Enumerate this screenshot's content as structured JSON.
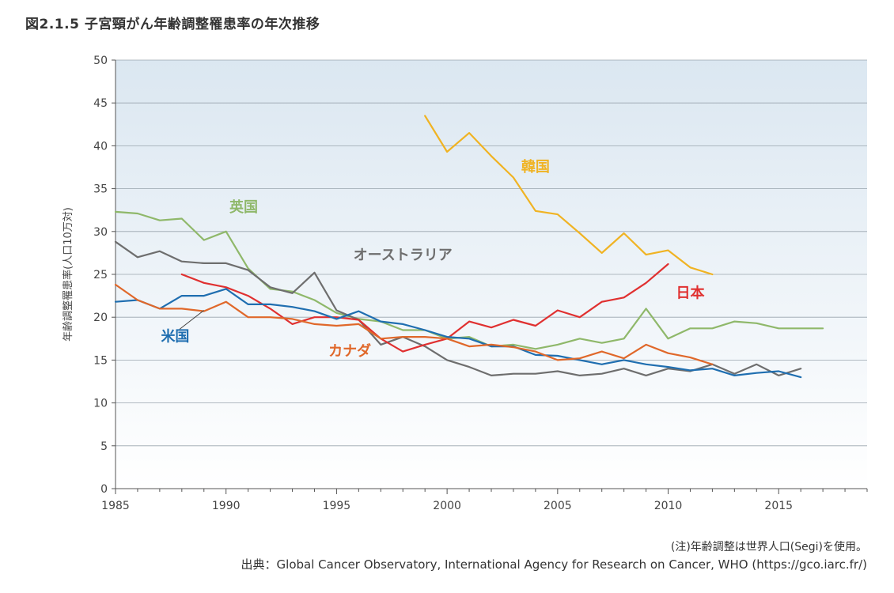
{
  "title": "図2.1.5  子宮頸がん年齢調整罹患率の年次推移",
  "note": "(注)年齢調整は世界人口(Segi)を使用。",
  "source": "出典：Global Cancer Observatory, International Agency for Research on Cancer, WHO (https://gco.iarc.fr/)",
  "chart_data": {
    "type": "line",
    "title": "図2.1.5  子宮頸がん年齢調整罹患率の年次推移",
    "xlabel": "",
    "ylabel": "年齢調整罹患率(人口10万対)",
    "xlim": [
      1985,
      2019
    ],
    "ylim": [
      0,
      50
    ],
    "xticks": [
      1985,
      1990,
      1995,
      2000,
      2005,
      2010,
      2015
    ],
    "yticks": [
      0,
      5,
      10,
      15,
      20,
      25,
      30,
      35,
      40,
      45,
      50
    ],
    "grid": "horizontal",
    "background": "gradient light blue to white",
    "series": [
      {
        "name": "韓国",
        "color": "#f0b323",
        "x": [
          1999,
          2000,
          2001,
          2002,
          2003,
          2004,
          2005,
          2006,
          2007,
          2008,
          2009,
          2010,
          2011,
          2012
        ],
        "y": [
          43.5,
          39.3,
          41.5,
          38.8,
          36.3,
          32.4,
          32.0,
          29.8,
          27.5,
          29.8,
          27.3,
          27.8,
          25.8,
          25.0
        ]
      },
      {
        "name": "英国",
        "color": "#8fb86a",
        "x": [
          1985,
          1986,
          1987,
          1988,
          1989,
          1990,
          1991,
          1992,
          1993,
          1994,
          1995,
          1996,
          1997,
          1998,
          1999,
          2000,
          2001,
          2002,
          2003,
          2004,
          2005,
          2006,
          2007,
          2008,
          2009,
          2010,
          2011,
          2012,
          2013,
          2014,
          2015,
          2016,
          2017
        ],
        "y": [
          32.3,
          32.1,
          31.3,
          31.5,
          29.0,
          30.0,
          25.7,
          23.3,
          23.0,
          22.0,
          20.5,
          19.8,
          19.5,
          18.5,
          18.5,
          17.5,
          17.7,
          16.6,
          16.8,
          16.3,
          16.8,
          17.5,
          17.0,
          17.5,
          21.0,
          17.5,
          18.7,
          18.7,
          19.5,
          19.3,
          18.7,
          18.7,
          18.7
        ]
      },
      {
        "name": "オーストラリア",
        "color": "#6e6e6e",
        "x": [
          1985,
          1986,
          1987,
          1988,
          1989,
          1990,
          1991,
          1992,
          1993,
          1994,
          1995,
          1996,
          1997,
          1998,
          1999,
          2000,
          2001,
          2002,
          2003,
          2004,
          2005,
          2006,
          2007,
          2008,
          2009,
          2010,
          2011,
          2012,
          2013,
          2014,
          2015,
          2016
        ],
        "y": [
          28.8,
          27.0,
          27.7,
          26.5,
          26.3,
          26.3,
          25.5,
          23.5,
          22.8,
          25.2,
          20.8,
          19.7,
          16.8,
          17.7,
          16.6,
          15.0,
          14.2,
          13.2,
          13.4,
          13.4,
          13.7,
          13.2,
          13.4,
          14.0,
          13.2,
          14.0,
          13.7,
          14.5,
          13.4,
          14.5,
          13.2,
          14.0
        ]
      },
      {
        "name": "日本",
        "color": "#e03030",
        "x": [
          1988,
          1989,
          1990,
          1991,
          1992,
          1993,
          1994,
          1995,
          1996,
          1997,
          1998,
          1999,
          2000,
          2001,
          2002,
          2003,
          2004,
          2005,
          2006,
          2007,
          2008,
          2009,
          2010
        ],
        "y": [
          25.0,
          24.0,
          23.5,
          22.5,
          21.0,
          19.2,
          20.0,
          20.0,
          19.7,
          17.5,
          16.0,
          16.8,
          17.5,
          19.5,
          18.8,
          19.7,
          19.0,
          20.8,
          20.0,
          21.8,
          22.3,
          24.0,
          26.2
        ]
      },
      {
        "name": "米国",
        "color": "#1f6eb0",
        "x": [
          1985,
          1986,
          1987,
          1988,
          1989,
          1990,
          1991,
          1992,
          1993,
          1994,
          1995,
          1996,
          1997,
          1998,
          1999,
          2000,
          2001,
          2002,
          2003,
          2004,
          2005,
          2006,
          2007,
          2008,
          2009,
          2010,
          2011,
          2012,
          2013,
          2014,
          2015,
          2016
        ],
        "y": [
          21.8,
          22.0,
          21.0,
          22.5,
          22.5,
          23.3,
          21.5,
          21.5,
          21.2,
          20.7,
          19.8,
          20.7,
          19.5,
          19.2,
          18.5,
          17.7,
          17.5,
          16.6,
          16.6,
          15.6,
          15.5,
          15.0,
          14.5,
          15.0,
          14.5,
          14.2,
          13.8,
          14.0,
          13.2,
          13.5,
          13.7,
          13.0
        ]
      },
      {
        "name": "カナダ",
        "color": "#e0682a",
        "x": [
          1985,
          1986,
          1987,
          1988,
          1989,
          1990,
          1991,
          1992,
          1993,
          1994,
          1995,
          1996,
          1997,
          1998,
          1999,
          2000,
          2001,
          2002,
          2003,
          2004,
          2005,
          2006,
          2007,
          2008,
          2009,
          2010,
          2011,
          2012
        ],
        "y": [
          23.8,
          22.0,
          21.0,
          21.0,
          20.7,
          21.8,
          20.0,
          20.0,
          19.8,
          19.2,
          19.0,
          19.2,
          17.5,
          17.7,
          17.7,
          17.5,
          16.6,
          16.8,
          16.5,
          16.0,
          15.0,
          15.2,
          16.0,
          15.2,
          16.8,
          15.8,
          15.3,
          14.5
        ]
      }
    ]
  }
}
